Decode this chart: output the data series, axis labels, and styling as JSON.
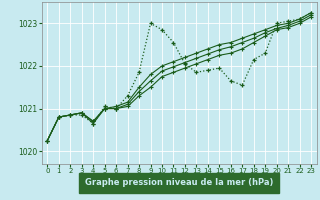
{
  "title": "Graphe pression niveau de la mer (hPa)",
  "bg_color": "#c8eaf0",
  "grid_color": "#b0d8e0",
  "line_color": "#1a5c1a",
  "label_bg": "#2d6b2d",
  "label_fg": "#c8eaf0",
  "xlim": [
    -0.5,
    23.5
  ],
  "ylim": [
    1019.7,
    1023.5
  ],
  "yticks": [
    1020,
    1021,
    1022,
    1023
  ],
  "xticks": [
    0,
    1,
    2,
    3,
    4,
    5,
    6,
    7,
    8,
    9,
    10,
    11,
    12,
    13,
    14,
    15,
    16,
    17,
    18,
    19,
    20,
    21,
    22,
    23
  ],
  "dotted_y": [
    1020.25,
    1020.8,
    1020.85,
    1020.85,
    1020.65,
    1021.05,
    1021.0,
    1021.3,
    1021.85,
    1023.0,
    1022.85,
    1022.55,
    1022.05,
    1021.85,
    1021.9,
    1021.95,
    1021.65,
    1021.55,
    1022.15,
    1022.3,
    1023.0,
    1023.05,
    1023.1,
    1023.25
  ],
  "solid1_y": [
    1020.25,
    1020.8,
    1020.85,
    1020.9,
    1020.7,
    1021.0,
    1021.05,
    1021.15,
    1021.5,
    1021.8,
    1022.0,
    1022.1,
    1022.2,
    1022.3,
    1022.4,
    1022.5,
    1022.55,
    1022.65,
    1022.75,
    1022.85,
    1022.95,
    1023.0,
    1023.1,
    1023.25
  ],
  "solid2_y": [
    1020.25,
    1020.8,
    1020.85,
    1020.9,
    1020.7,
    1021.0,
    1021.0,
    1021.1,
    1021.4,
    1021.65,
    1021.88,
    1021.98,
    1022.08,
    1022.18,
    1022.28,
    1022.38,
    1022.45,
    1022.55,
    1022.65,
    1022.78,
    1022.88,
    1022.95,
    1023.05,
    1023.2
  ],
  "solid3_y": [
    1020.25,
    1020.8,
    1020.85,
    1020.9,
    1020.65,
    1021.0,
    1021.0,
    1021.05,
    1021.3,
    1021.5,
    1021.75,
    1021.85,
    1021.95,
    1022.05,
    1022.15,
    1022.25,
    1022.3,
    1022.4,
    1022.55,
    1022.7,
    1022.85,
    1022.9,
    1023.0,
    1023.15
  ]
}
